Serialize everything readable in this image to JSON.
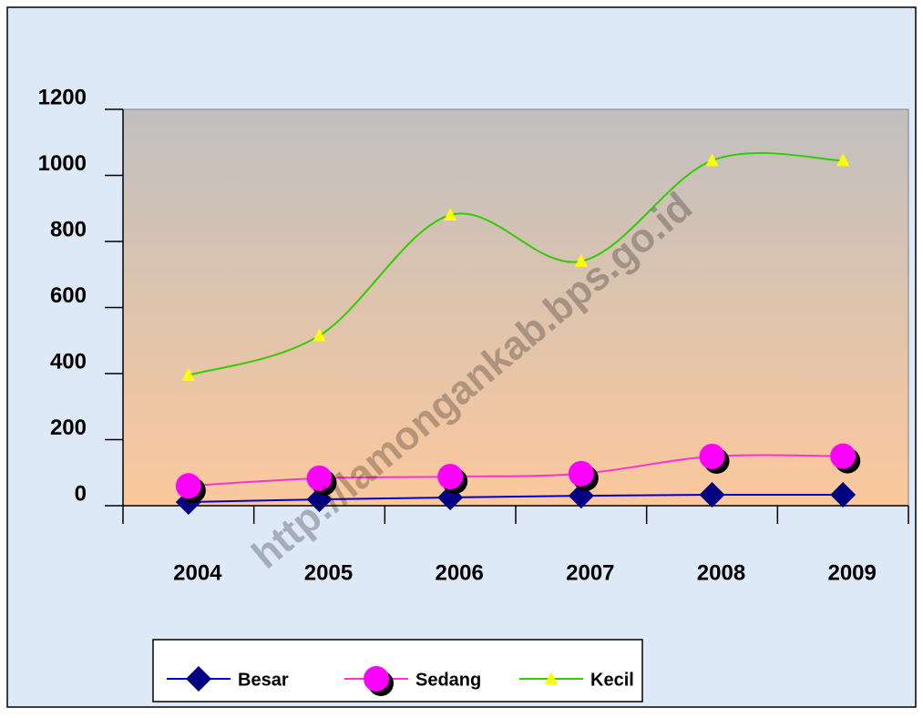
{
  "chart_data": {
    "type": "line",
    "categories": [
      "2004",
      "2005",
      "2006",
      "2007",
      "2008",
      "2009"
    ],
    "series": [
      {
        "name": "Besar",
        "color": "#0000cc",
        "marker_color": "#000080",
        "marker": "diamond",
        "values": [
          11,
          19,
          25,
          30,
          33,
          33
        ]
      },
      {
        "name": "Sedang",
        "color": "#ff33cc",
        "marker_color": "#ff00ff",
        "marker": "circle",
        "values": [
          60,
          83,
          88,
          97,
          149,
          150
        ]
      },
      {
        "name": "Kecil",
        "color": "#33cc00",
        "marker_color": "#ffff00",
        "marker": "triangle",
        "values": [
          395,
          515,
          880,
          740,
          1045,
          1045
        ]
      }
    ],
    "ylim": [
      0,
      1200
    ],
    "yticks": [
      0,
      200,
      400,
      600,
      800,
      1000,
      1200
    ],
    "legend": "bottom",
    "smooth": true,
    "watermark": "http://lamongankab.bps.go.id"
  }
}
